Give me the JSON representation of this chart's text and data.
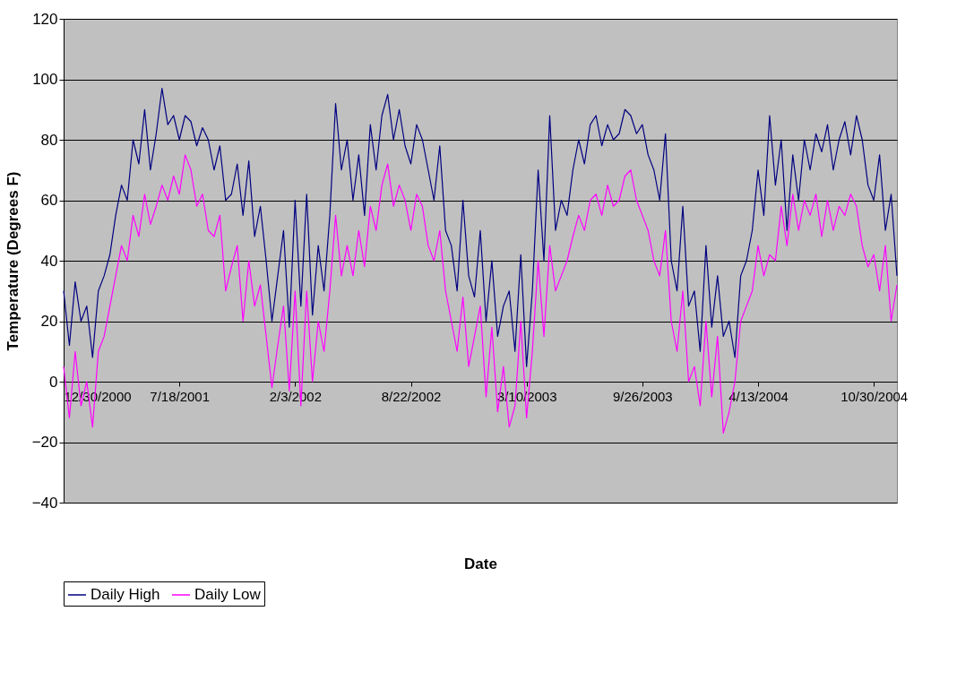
{
  "chart_data": {
    "type": "line",
    "xlabel": "Date",
    "ylabel": "Temperature (Degrees F)",
    "ylim": [
      -40,
      120
    ],
    "yticks": [
      -40,
      -20,
      0,
      20,
      40,
      60,
      80,
      100,
      120
    ],
    "xlim": [
      "2000-12-30",
      "2004-12-09"
    ],
    "xticks": [
      {
        "value": "2000-12-30",
        "label": "12/30/2000"
      },
      {
        "value": "2001-07-18",
        "label": "7/18/2001"
      },
      {
        "value": "2002-02-03",
        "label": "2/3/2002"
      },
      {
        "value": "2002-08-22",
        "label": "8/22/2002"
      },
      {
        "value": "2003-03-10",
        "label": "3/10/2003"
      },
      {
        "value": "2003-09-26",
        "label": "9/26/2003"
      },
      {
        "value": "2004-04-13",
        "label": "4/13/2004"
      },
      {
        "value": "2004-10-30",
        "label": "10/30/2004"
      }
    ],
    "grid": "y",
    "legend": "bottom",
    "x": [
      "2000-12-30",
      "2001-01-09",
      "2001-01-19",
      "2001-01-29",
      "2001-02-08",
      "2001-02-18",
      "2001-02-28",
      "2001-03-10",
      "2001-03-20",
      "2001-03-30",
      "2001-04-09",
      "2001-04-19",
      "2001-04-29",
      "2001-05-09",
      "2001-05-19",
      "2001-05-29",
      "2001-06-08",
      "2001-06-18",
      "2001-06-28",
      "2001-07-08",
      "2001-07-18",
      "2001-07-28",
      "2001-08-07",
      "2001-08-17",
      "2001-08-27",
      "2001-09-06",
      "2001-09-16",
      "2001-09-26",
      "2001-10-06",
      "2001-10-16",
      "2001-10-26",
      "2001-11-05",
      "2001-11-15",
      "2001-11-25",
      "2001-12-05",
      "2001-12-15",
      "2001-12-25",
      "2002-01-04",
      "2002-01-14",
      "2002-01-24",
      "2002-02-03",
      "2002-02-13",
      "2002-02-23",
      "2002-03-05",
      "2002-03-15",
      "2002-03-25",
      "2002-04-04",
      "2002-04-14",
      "2002-04-24",
      "2002-05-04",
      "2002-05-14",
      "2002-05-24",
      "2002-06-03",
      "2002-06-13",
      "2002-06-23",
      "2002-07-03",
      "2002-07-13",
      "2002-07-23",
      "2002-08-02",
      "2002-08-12",
      "2002-08-22",
      "2002-09-01",
      "2002-09-11",
      "2002-09-21",
      "2002-10-01",
      "2002-10-11",
      "2002-10-21",
      "2002-10-31",
      "2002-11-10",
      "2002-11-20",
      "2002-11-30",
      "2002-12-10",
      "2002-12-20",
      "2002-12-30",
      "2003-01-09",
      "2003-01-19",
      "2003-01-29",
      "2003-02-08",
      "2003-02-18",
      "2003-02-28",
      "2003-03-10",
      "2003-03-20",
      "2003-03-30",
      "2003-04-09",
      "2003-04-19",
      "2003-04-29",
      "2003-05-09",
      "2003-05-19",
      "2003-05-29",
      "2003-06-08",
      "2003-06-18",
      "2003-06-28",
      "2003-07-08",
      "2003-07-18",
      "2003-07-28",
      "2003-08-07",
      "2003-08-17",
      "2003-08-27",
      "2003-09-06",
      "2003-09-16",
      "2003-09-26",
      "2003-10-06",
      "2003-10-16",
      "2003-10-26",
      "2003-11-05",
      "2003-11-15",
      "2003-11-25",
      "2003-12-05",
      "2003-12-15",
      "2003-12-25",
      "2004-01-04",
      "2004-01-14",
      "2004-01-24",
      "2004-02-03",
      "2004-02-13",
      "2004-02-23",
      "2004-03-04",
      "2004-03-14",
      "2004-03-24",
      "2004-04-03",
      "2004-04-13",
      "2004-04-23",
      "2004-05-03",
      "2004-05-13",
      "2004-05-23",
      "2004-06-02",
      "2004-06-12",
      "2004-06-22",
      "2004-07-02",
      "2004-07-12",
      "2004-07-22",
      "2004-08-01",
      "2004-08-11",
      "2004-08-21",
      "2004-08-31",
      "2004-09-10",
      "2004-09-20",
      "2004-09-30",
      "2004-10-10",
      "2004-10-20",
      "2004-10-30",
      "2004-11-09",
      "2004-11-19",
      "2004-11-29",
      "2004-12-09"
    ],
    "series": [
      {
        "name": "Daily High",
        "color": "#000080",
        "values": [
          30,
          12,
          33,
          20,
          25,
          8,
          30,
          35,
          42,
          55,
          65,
          60,
          80,
          72,
          90,
          70,
          82,
          97,
          85,
          88,
          80,
          88,
          86,
          78,
          84,
          80,
          70,
          78,
          60,
          62,
          72,
          55,
          73,
          48,
          58,
          40,
          20,
          35,
          50,
          18,
          60,
          25,
          62,
          22,
          45,
          30,
          55,
          92,
          70,
          80,
          60,
          75,
          55,
          85,
          70,
          88,
          95,
          80,
          90,
          78,
          72,
          85,
          80,
          70,
          60,
          78,
          50,
          45,
          30,
          60,
          35,
          28,
          50,
          20,
          40,
          15,
          25,
          30,
          10,
          42,
          5,
          30,
          70,
          40,
          88,
          50,
          60,
          55,
          70,
          80,
          72,
          85,
          88,
          78,
          85,
          80,
          82,
          90,
          88,
          82,
          85,
          75,
          70,
          60,
          82,
          40,
          30,
          58,
          25,
          30,
          10,
          45,
          18,
          35,
          15,
          20,
          8,
          35,
          40,
          50,
          70,
          55,
          88,
          65,
          80,
          50,
          75,
          60,
          80,
          70,
          82,
          76,
          85,
          70,
          80,
          86,
          75,
          88,
          80,
          65,
          60,
          75,
          50,
          62,
          35
        ]
      },
      {
        "name": "Daily Low",
        "color": "#ff00ff",
        "values": [
          5,
          -12,
          10,
          -8,
          0,
          -15,
          10,
          15,
          25,
          35,
          45,
          40,
          55,
          48,
          62,
          52,
          58,
          65,
          60,
          68,
          62,
          75,
          70,
          58,
          62,
          50,
          48,
          55,
          30,
          38,
          45,
          20,
          40,
          25,
          32,
          15,
          -2,
          12,
          25,
          -3,
          30,
          -8,
          30,
          0,
          20,
          10,
          30,
          55,
          35,
          45,
          35,
          50,
          38,
          58,
          50,
          65,
          72,
          58,
          65,
          60,
          50,
          62,
          58,
          45,
          40,
          50,
          30,
          20,
          10,
          28,
          5,
          15,
          25,
          -5,
          18,
          -10,
          5,
          -15,
          -8,
          20,
          -12,
          10,
          40,
          15,
          45,
          30,
          35,
          40,
          48,
          55,
          50,
          60,
          62,
          55,
          65,
          58,
          60,
          68,
          70,
          60,
          55,
          50,
          40,
          35,
          50,
          20,
          10,
          30,
          0,
          5,
          -8,
          20,
          -5,
          15,
          -17,
          -10,
          0,
          20,
          25,
          30,
          45,
          35,
          42,
          40,
          58,
          45,
          62,
          50,
          60,
          55,
          62,
          48,
          60,
          50,
          58,
          55,
          62,
          58,
          45,
          38,
          42,
          30,
          45,
          20,
          32
        ]
      }
    ]
  }
}
